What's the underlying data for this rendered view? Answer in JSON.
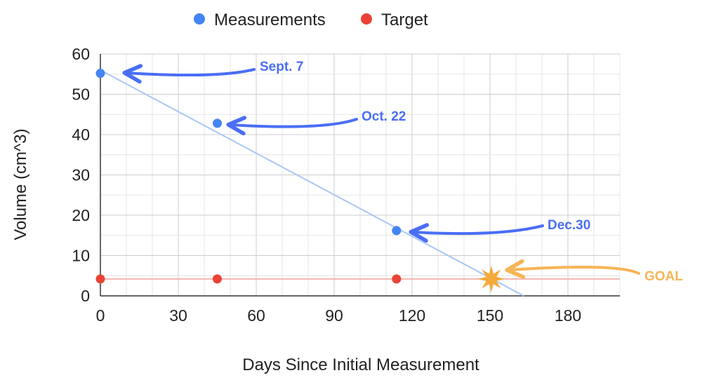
{
  "chart_data": {
    "type": "scatter",
    "title": "",
    "xlabel": "Days Since Initial Measurement",
    "ylabel": "Volume (cm^3)",
    "xlim": [
      0,
      200
    ],
    "ylim": [
      0,
      60
    ],
    "x_ticks": [
      0,
      30,
      60,
      90,
      120,
      150,
      180
    ],
    "y_ticks": [
      0,
      10,
      20,
      30,
      40,
      50,
      60
    ],
    "grid": true,
    "legend_position": "top-center",
    "series": [
      {
        "name": "Measurements",
        "color": "#4285f4",
        "x": [
          0,
          45,
          114
        ],
        "y": [
          55.2,
          42.8,
          16.2
        ],
        "trendline": {
          "color": "#a9c7f5",
          "x": [
            0,
            163
          ],
          "y": [
            56.0,
            0
          ]
        }
      },
      {
        "name": "Target",
        "color": "#ea4335",
        "x": [
          0,
          45,
          114
        ],
        "y": [
          4.2,
          4.2,
          4.2
        ],
        "trendline": {
          "color": "#f4b5ae",
          "x": [
            0,
            200
          ],
          "y": [
            4.2,
            4.2
          ]
        }
      }
    ],
    "annotations": [
      {
        "text": "Sept. 7",
        "color": "#4a6ef5",
        "x": 10,
        "y": 55.2
      },
      {
        "text": "Oct. 22",
        "color": "#4a6ef5",
        "x": 50,
        "y": 42.8
      },
      {
        "text": "Dec.30",
        "color": "#4a6ef5",
        "x": 120,
        "y": 16.2
      },
      {
        "text": "GOAL",
        "color": "#f6b556",
        "x": 158,
        "y": 6.5
      }
    ],
    "goal_marker": {
      "x": 150.5,
      "y": 4.2,
      "color": "#f6a93b",
      "icon": "star-icon"
    }
  }
}
